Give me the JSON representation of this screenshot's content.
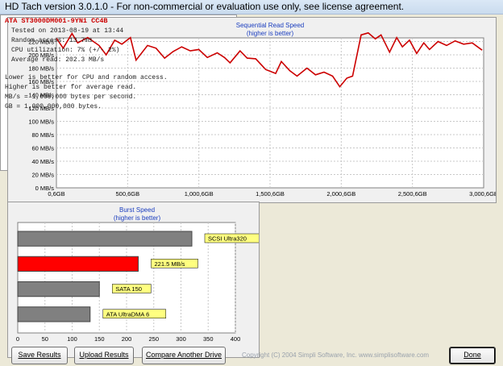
{
  "window": {
    "title": "HD Tach version 3.0.1.0  - For non-commercial or evaluation use only, see license agreement."
  },
  "sequential_chart": {
    "title": "Sequential Read Speed",
    "subtitle": "(higher is better)"
  },
  "burst_chart": {
    "title": "Burst Speed",
    "subtitle": "(higher is better)"
  },
  "chart_data": [
    {
      "type": "line",
      "title": "Sequential Read Speed",
      "subtitle": "(higher is better)",
      "xlabel": "",
      "ylabel": "",
      "x_ticks": [
        "0,6GB",
        "500,6GB",
        "1,000,6GB",
        "1,500,6GB",
        "2,000,6GB",
        "2,500,6GB",
        "3,000,6GB"
      ],
      "y_ticks": [
        "0 MB/s",
        "20 MB/s",
        "40 MB/s",
        "60 MB/s",
        "80 MB/s",
        "100 MB/s",
        "120 MB/s",
        "140 MB/s",
        "160 MB/s",
        "180 MB/s",
        "200 MB/s",
        "220 MB/s"
      ],
      "xlim": [
        0.6,
        3000.6
      ],
      "ylim": [
        0,
        240
      ],
      "grid": true,
      "line_color": "#cc0000",
      "x": [
        0.6,
        48,
        110,
        150,
        220,
        300,
        350,
        410,
        460,
        520,
        560,
        640,
        700,
        760,
        820,
        880,
        940,
        1000,
        1060,
        1130,
        1180,
        1220,
        1290,
        1340,
        1400,
        1470,
        1540,
        1580,
        1640,
        1690,
        1760,
        1820,
        1880,
        1940,
        1990,
        2040,
        2080,
        2140,
        2190,
        2240,
        2280,
        2340,
        2390,
        2430,
        2480,
        2530,
        2580,
        2620,
        2680,
        2740,
        2800,
        2860,
        2920,
        2990
      ],
      "y": [
        225,
        210,
        232,
        218,
        226,
        214,
        200,
        222,
        216,
        226,
        192,
        214,
        210,
        195,
        205,
        212,
        206,
        208,
        196,
        203,
        196,
        188,
        206,
        195,
        194,
        178,
        172,
        190,
        176,
        168,
        180,
        170,
        174,
        168,
        152,
        165,
        168,
        230,
        233,
        224,
        230,
        204,
        226,
        212,
        222,
        202,
        218,
        208,
        220,
        214,
        221,
        216,
        218,
        207
      ],
      "series": [
        {
          "name": "",
          "color": "#cc0000"
        }
      ]
    },
    {
      "type": "bar",
      "title": "Burst Speed",
      "subtitle": "(higher is better)",
      "orientation": "horizontal",
      "categories": [
        "SCSI Ultra320",
        "221.5 MB/s",
        "SATA 150",
        "ATA UltraDMA 6"
      ],
      "values": [
        320,
        221.5,
        150,
        133
      ],
      "bar_colors": [
        "#808080",
        "#ff0000",
        "#808080",
        "#808080"
      ],
      "label_bg": "#ffff80",
      "x_ticks": [
        "0",
        "50",
        "100",
        "150",
        "200",
        "250",
        "300",
        "350",
        "400"
      ],
      "xlim": [
        0,
        400
      ]
    }
  ],
  "drive_info": {
    "drive_name": "ATA ST3000DM001-9YN1 CC4B",
    "lines": [
      "Tested on 2013-08-19 at 13:44",
      "Random access: 13.7ms",
      "CPU utilization: 7% (+/- 2%)",
      "Average read: 202.3 MB/s"
    ],
    "notes": [
      "Lower is better for CPU and random access.",
      "Higher is better for average read.",
      "MB/s = 1,000,000 bytes per second.",
      "GB = 1,000,000,000 bytes."
    ]
  },
  "buttons": {
    "save": "Save Results",
    "upload": "Upload Results",
    "compare": "Compare Another Drive",
    "done": "Done"
  },
  "copyright": "Copyright (C) 2004 Simpli Software, Inc. www.simplisoftware.com"
}
